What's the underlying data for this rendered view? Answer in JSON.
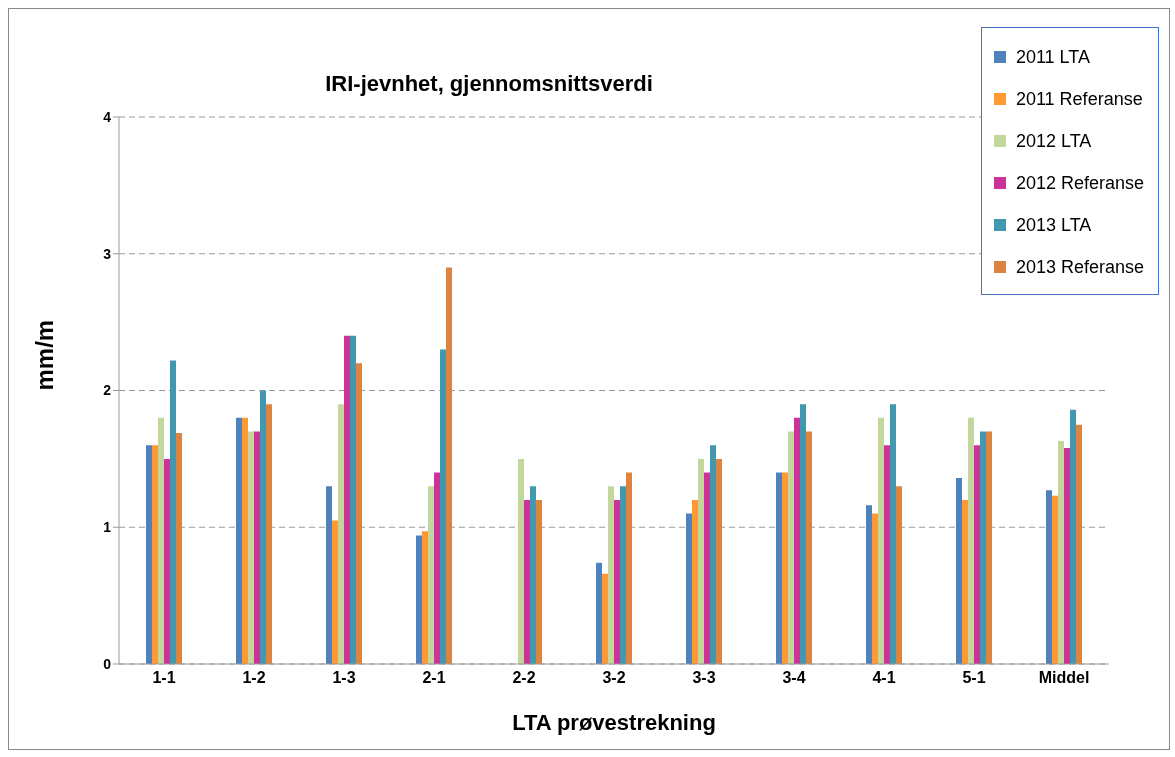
{
  "chart_data": {
    "type": "bar",
    "title": "IRI-jevnhet, gjennomsnittsverdi",
    "xlabel": "LTA prøvestrekning",
    "ylabel": "mm/m",
    "categories": [
      "1-1",
      "1-2",
      "1-3",
      "2-1",
      "2-2",
      "3-2",
      "3-3",
      "3-4",
      "4-1",
      "5-1",
      "Middel"
    ],
    "series": [
      {
        "name": "2011 LTA",
        "color": "#4f81bd",
        "values": [
          1.6,
          1.8,
          1.3,
          0.94,
          null,
          0.74,
          1.1,
          1.4,
          1.16,
          1.36,
          1.27
        ]
      },
      {
        "name": "2011 Referanse",
        "color": "#ff9933",
        "values": [
          1.6,
          1.8,
          1.05,
          0.97,
          null,
          0.66,
          1.2,
          1.4,
          1.1,
          1.2,
          1.23
        ]
      },
      {
        "name": "2012 LTA",
        "color": "#c3d69b",
        "values": [
          1.8,
          1.7,
          1.9,
          1.3,
          1.5,
          1.3,
          1.5,
          1.7,
          1.8,
          1.8,
          1.63
        ]
      },
      {
        "name": "2012 Referanse",
        "color": "#cc3399",
        "values": [
          1.5,
          1.7,
          2.4,
          1.4,
          1.2,
          1.2,
          1.4,
          1.8,
          1.6,
          1.6,
          1.58
        ]
      },
      {
        "name": "2013 LTA",
        "color": "#4198af",
        "values": [
          2.22,
          2.0,
          2.4,
          2.3,
          1.3,
          1.3,
          1.6,
          1.9,
          1.9,
          1.7,
          1.86
        ]
      },
      {
        "name": "2013 Referanse",
        "color": "#dd8440",
        "values": [
          1.69,
          1.9,
          2.2,
          2.9,
          1.2,
          1.4,
          1.5,
          1.7,
          1.3,
          1.7,
          1.75
        ]
      }
    ],
    "ylim": [
      0,
      4
    ],
    "yticks": [
      0,
      1,
      2,
      3,
      4
    ],
    "grid": "y",
    "legend": "top right"
  }
}
